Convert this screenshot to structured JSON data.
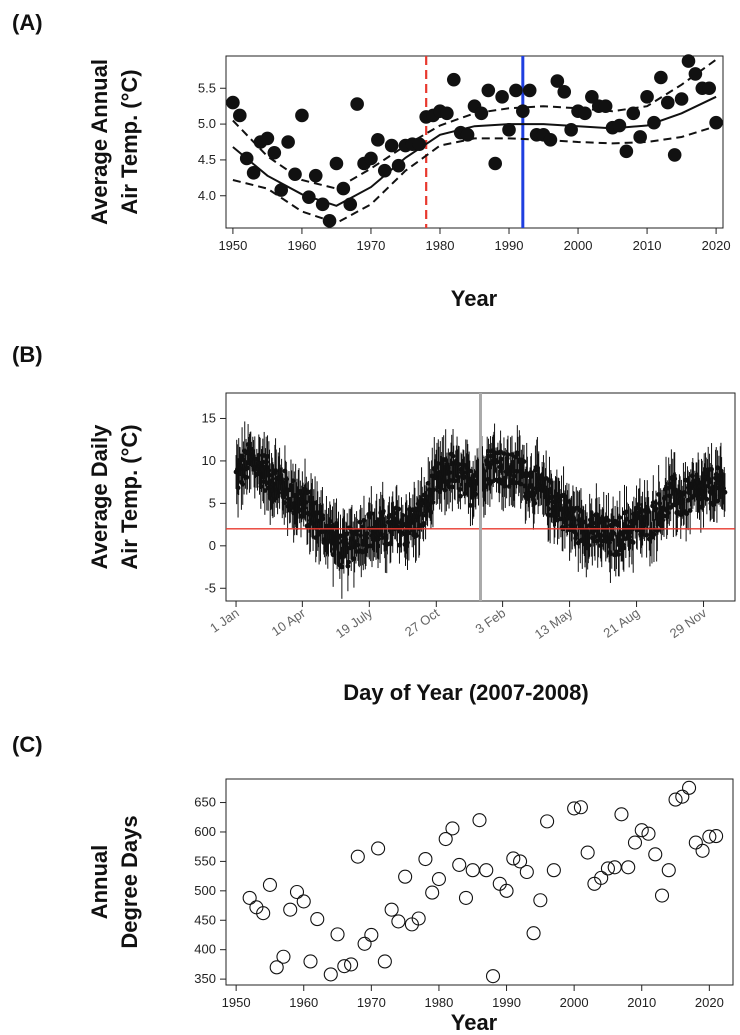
{
  "figure": {
    "panel_a_label": "(A)",
    "panel_b_label": "(B)",
    "panel_c_label": "(C)"
  },
  "chart_data": [
    {
      "type": "scatter",
      "panel": "(A)",
      "ylabel_line1": "Average Annual",
      "ylabel_line2": "Air Temp. (°C)",
      "xlabel": "Year",
      "xlim": [
        1949,
        2021
      ],
      "ylim": [
        3.55,
        5.95
      ],
      "xticks": [
        1950,
        1960,
        1970,
        1980,
        1990,
        2000,
        2010,
        2020
      ],
      "yticks": [
        4.0,
        4.5,
        5.0,
        5.5
      ],
      "ytick_labels": [
        "4.0",
        "4.5",
        "5.0",
        "5.5"
      ],
      "points": {
        "x": [
          1950,
          1951,
          1952,
          1953,
          1954,
          1955,
          1956,
          1957,
          1958,
          1959,
          1960,
          1961,
          1962,
          1963,
          1964,
          1965,
          1966,
          1967,
          1968,
          1969,
          1970,
          1971,
          1972,
          1973,
          1974,
          1975,
          1976,
          1977,
          1978,
          1979,
          1980,
          1981,
          1982,
          1983,
          1984,
          1985,
          1986,
          1987,
          1988,
          1989,
          1990,
          1991,
          1992,
          1993,
          1994,
          1995,
          1996,
          1997,
          1998,
          1999,
          2000,
          2001,
          2002,
          2003,
          2004,
          2005,
          2006,
          2007,
          2008,
          2009,
          2010,
          2011,
          2012,
          2013,
          2014,
          2015,
          2016,
          2017,
          2018,
          2019,
          2020
        ],
        "y": [
          5.3,
          5.12,
          4.52,
          4.32,
          4.75,
          4.8,
          4.6,
          4.08,
          4.75,
          4.3,
          5.12,
          3.98,
          4.28,
          3.88,
          3.65,
          4.45,
          4.1,
          3.88,
          5.28,
          4.45,
          4.52,
          4.78,
          4.35,
          4.7,
          4.42,
          4.7,
          4.72,
          4.72,
          5.1,
          5.12,
          5.18,
          5.15,
          5.62,
          4.88,
          4.85,
          5.25,
          5.15,
          5.47,
          4.45,
          5.38,
          4.92,
          5.47,
          5.18,
          5.47,
          4.85,
          4.85,
          4.78,
          5.6,
          5.45,
          4.92,
          5.18,
          5.15,
          5.38,
          5.25,
          5.25,
          4.95,
          4.98,
          4.62,
          5.15,
          4.82,
          5.38,
          5.02,
          5.65,
          5.3,
          4.57,
          5.35,
          5.88,
          5.7,
          5.5,
          5.5,
          5.02
        ]
      },
      "fit": {
        "x": [
          1950,
          1955,
          1960,
          1965,
          1970,
          1975,
          1980,
          1985,
          1990,
          1995,
          2000,
          2005,
          2010,
          2015,
          2020
        ],
        "y": [
          4.68,
          4.28,
          4.02,
          3.86,
          4.12,
          4.53,
          4.85,
          4.97,
          5.0,
          5.0,
          4.97,
          4.94,
          4.98,
          5.15,
          5.38
        ],
        "lower": [
          4.22,
          4.1,
          3.78,
          3.62,
          3.88,
          4.35,
          4.7,
          4.8,
          4.8,
          4.78,
          4.75,
          4.73,
          4.75,
          4.82,
          4.97
        ],
        "upper": [
          5.05,
          4.55,
          4.22,
          4.1,
          4.38,
          4.7,
          4.98,
          5.15,
          5.22,
          5.25,
          5.22,
          5.18,
          5.25,
          5.55,
          5.9
        ]
      },
      "vlines": [
        {
          "x": 1978,
          "color": "#e8382e",
          "style": "dashed"
        },
        {
          "x": 1992,
          "color": "#1f3fe0",
          "style": "solid"
        }
      ]
    },
    {
      "type": "scatter",
      "panel": "(B)",
      "ylabel_line1": "Average Daily",
      "ylabel_line2": "Air Temp. (°C)",
      "xlabel": "Day of Year (2007-2008)",
      "xlim": [
        -15,
        745
      ],
      "ylim": [
        -6.5,
        18
      ],
      "yticks": [
        -5,
        0,
        5,
        10,
        15
      ],
      "ytick_labels": [
        "-5",
        "0",
        "5",
        "10",
        "15"
      ],
      "xticks": [
        0,
        99,
        199,
        299,
        398,
        498,
        598,
        698
      ],
      "xtick_labels": [
        "1 Jan",
        "10 Apr",
        "19 July",
        "27 Oct",
        "3 Feb",
        "13 May",
        "21 Aug",
        "29 Nov"
      ],
      "hline": {
        "y": 2,
        "color": "#e8382e"
      },
      "vline": {
        "x": 365,
        "color": "#aaaaaa"
      },
      "series_description_points": {
        "x": [
          0,
          10,
          20,
          30,
          40,
          50,
          60,
          70,
          80,
          90,
          100,
          110,
          120,
          130,
          140,
          150,
          160,
          170,
          180,
          190,
          200,
          210,
          220,
          230,
          240,
          250,
          260,
          270,
          280,
          290,
          300,
          310,
          320,
          330,
          340,
          350,
          360,
          370,
          380,
          390,
          400,
          410,
          420,
          430,
          440,
          450,
          460,
          470,
          480,
          490,
          500,
          510,
          520,
          530,
          540,
          550,
          560,
          570,
          580,
          590,
          600,
          610,
          620,
          630,
          640,
          650,
          660,
          670,
          680,
          690,
          700,
          710,
          720,
          730
        ],
        "y": [
          8,
          9,
          10,
          9.5,
          9,
          8,
          7.5,
          7,
          6,
          5.5,
          5,
          4,
          3,
          2,
          1.5,
          0.5,
          -1,
          0,
          1,
          1.5,
          2,
          1.5,
          2,
          1.5,
          2.5,
          2,
          2.5,
          3,
          4,
          6,
          7.5,
          8,
          9,
          8,
          7.5,
          7,
          8.5,
          9,
          9.5,
          10,
          9,
          8.5,
          9,
          8,
          7.5,
          7,
          6,
          5.5,
          5,
          4,
          3,
          2.5,
          2,
          2,
          1.5,
          1.5,
          0.5,
          1,
          2,
          2,
          3,
          2.5,
          3,
          4,
          5,
          6,
          5.5,
          5.5,
          6,
          6,
          6.5,
          7,
          7,
          6
        ]
      }
    },
    {
      "type": "scatter",
      "panel": "(C)",
      "ylabel_line1": "Annual",
      "ylabel_line2": "Degree Days",
      "xlabel": "Year",
      "xlim": [
        1948.5,
        2023.5
      ],
      "ylim": [
        340,
        690
      ],
      "xticks": [
        1950,
        1960,
        1970,
        1980,
        1990,
        2000,
        2010,
        2020
      ],
      "yticks": [
        350,
        400,
        450,
        500,
        550,
        600,
        650
      ],
      "points": {
        "x": [
          1952,
          1953,
          1954,
          1955,
          1956,
          1957,
          1958,
          1959,
          1960,
          1961,
          1962,
          1964,
          1965,
          1966,
          1967,
          1968,
          1969,
          1970,
          1971,
          1972,
          1973,
          1974,
          1975,
          1976,
          1977,
          1978,
          1979,
          1980,
          1981,
          1982,
          1983,
          1984,
          1985,
          1986,
          1987,
          1988,
          1989,
          1990,
          1991,
          1992,
          1993,
          1994,
          1995,
          1996,
          1997,
          2000,
          2001,
          2002,
          2003,
          2004,
          2005,
          2006,
          2007,
          2008,
          2009,
          2010,
          2011,
          2012,
          2013,
          2014,
          2015,
          2016,
          2017,
          2018,
          2019,
          2020,
          2021
        ],
        "y": [
          488,
          472,
          462,
          510,
          370,
          388,
          468,
          498,
          482,
          380,
          452,
          358,
          426,
          372,
          375,
          558,
          410,
          425,
          572,
          380,
          468,
          448,
          524,
          443,
          453,
          554,
          497,
          520,
          588,
          606,
          544,
          488,
          535,
          620,
          535,
          355,
          512,
          500,
          555,
          550,
          532,
          428,
          484,
          618,
          535,
          640,
          642,
          565,
          512,
          522,
          538,
          540,
          630,
          540,
          582,
          603,
          597,
          562,
          492,
          535,
          655,
          660,
          675,
          582,
          568,
          592,
          593
        ]
      }
    }
  ]
}
